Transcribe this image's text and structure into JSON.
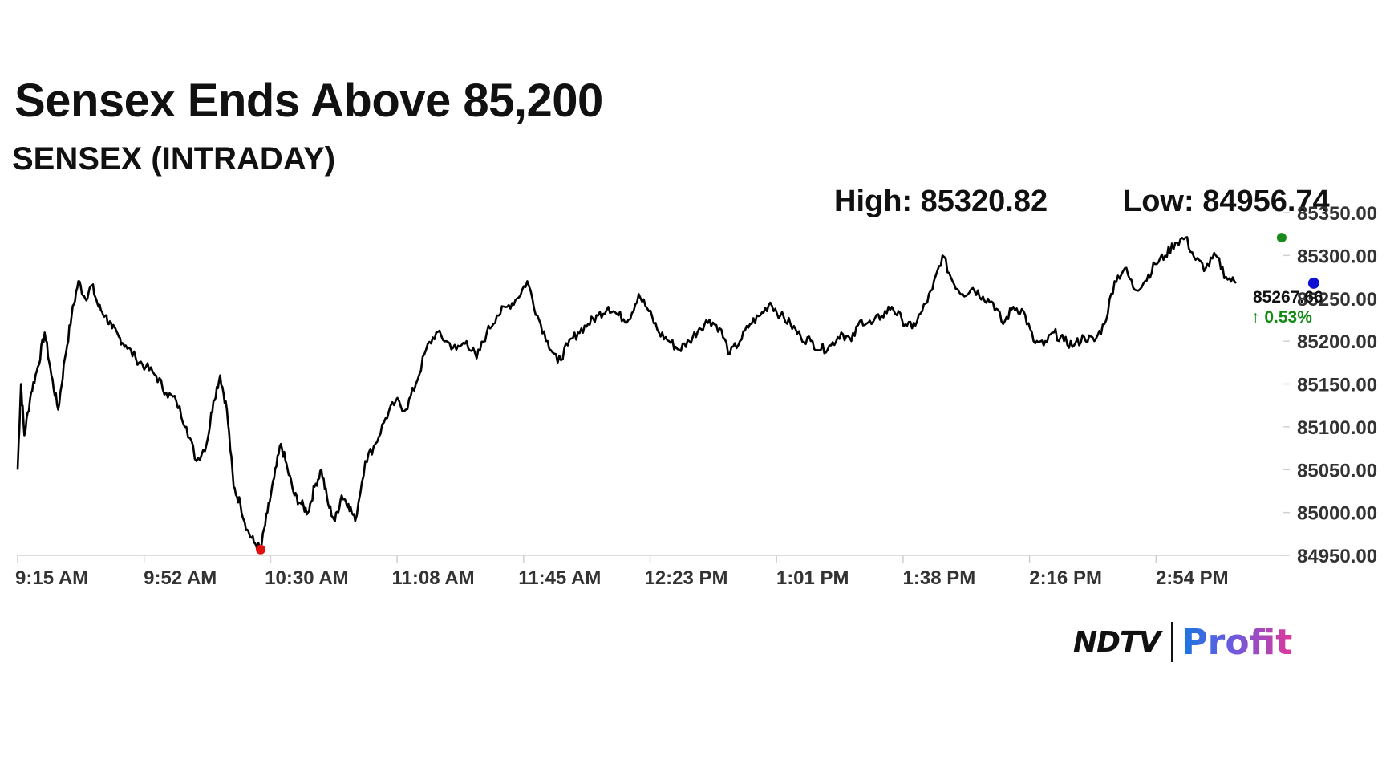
{
  "headline": "Sensex Ends Above 85,200",
  "subtitle": "SENSEX (INTRADAY)",
  "stats": {
    "high_label": "High: 85320.82",
    "low_label": "Low: 84956.74"
  },
  "last_value": {
    "price": "85267.66",
    "change": "↑ 0.53%",
    "change_color": "#138a13"
  },
  "brand": {
    "ndtv": "NDTV",
    "profit": "Profit"
  },
  "chart_data": {
    "type": "line",
    "title": "SENSEX (INTRADAY)",
    "x_tick_labels": [
      "9:15 AM",
      "9:52 AM",
      "10:30 AM",
      "11:08 AM",
      "11:45 AM",
      "12:23 PM",
      "1:01 PM",
      "1:38 PM",
      "2:16 PM",
      "2:54 PM"
    ],
    "y_tick_labels": [
      "85350.00",
      "85300.00",
      "85250.00",
      "85200.00",
      "85150.00",
      "85100.00",
      "85050.00",
      "85000.00",
      "84950.00"
    ],
    "ylim": [
      84950,
      85350
    ],
    "xlim_minutes": [
      555,
      930
    ],
    "y_axis_position": "right",
    "grid": false,
    "line_color": "#000000",
    "high_marker": {
      "time_min": 929.5,
      "value": 85320.82,
      "color": "#1a8a1a"
    },
    "low_marker": {
      "time_min": 627,
      "value": 84956.74,
      "color": "#e01010"
    },
    "close_marker": {
      "time_min": 939,
      "value": 85267.66,
      "color": "#1010d0"
    },
    "series": [
      {
        "values_time_min": [
          555,
          556,
          557,
          559,
          561,
          563,
          565,
          567,
          569,
          571,
          573,
          575,
          577,
          579,
          581,
          583,
          585,
          587,
          590,
          593,
          596,
          599,
          602,
          605,
          608,
          611,
          613,
          615,
          617,
          619,
          621,
          623,
          625,
          627,
          629,
          631,
          633,
          635,
          637,
          639,
          641,
          643,
          645,
          647,
          649,
          651,
          653,
          655,
          658,
          661,
          664,
          667,
          670,
          673,
          676,
          679,
          682,
          685,
          688,
          691,
          694,
          697,
          700,
          703,
          706,
          709,
          712,
          715,
          718,
          721,
          724,
          727,
          730,
          733,
          736,
          739,
          742,
          745,
          748,
          751,
          754,
          757,
          760,
          763,
          766,
          769,
          772,
          775,
          778,
          781,
          784,
          787,
          790,
          793,
          796,
          799,
          802,
          805,
          808,
          811,
          814,
          817,
          820,
          823,
          826,
          829,
          832,
          835,
          838,
          841,
          844,
          847,
          850,
          853,
          856,
          859,
          862,
          865,
          868,
          871,
          874,
          877,
          880,
          883,
          886,
          889,
          892,
          895,
          898,
          901,
          904,
          907,
          910,
          913,
          916,
          919,
          922,
          925,
          928,
          929.5,
          931,
          933,
          935,
          937,
          939
        ],
        "values": [
          85050,
          85150,
          85090,
          85140,
          85170,
          85210,
          85160,
          85120,
          85180,
          85230,
          85270,
          85250,
          85265,
          85240,
          85230,
          85215,
          85205,
          85195,
          85180,
          85170,
          85160,
          85140,
          85130,
          85100,
          85060,
          85080,
          85130,
          85160,
          85120,
          85030,
          85010,
          84980,
          84965,
          84956.74,
          85000,
          85040,
          85080,
          85050,
          85020,
          85010,
          85000,
          85030,
          85050,
          85010,
          84990,
          85020,
          85010,
          84990,
          85060,
          85080,
          85110,
          85130,
          85120,
          85150,
          85190,
          85210,
          85200,
          85190,
          85200,
          85180,
          85210,
          85230,
          85240,
          85250,
          85270,
          85230,
          85200,
          85175,
          85195,
          85210,
          85220,
          85230,
          85240,
          85230,
          85225,
          85255,
          85235,
          85210,
          85200,
          85190,
          85200,
          85215,
          85225,
          85215,
          85185,
          85200,
          85220,
          85230,
          85245,
          85230,
          85220,
          85205,
          85200,
          85190,
          85195,
          85210,
          85200,
          85225,
          85220,
          85230,
          85240,
          85225,
          85215,
          85235,
          85260,
          85300,
          85270,
          85255,
          85262,
          85252,
          85245,
          85220,
          85240,
          85235,
          85200,
          85195,
          85210,
          85200,
          85195,
          85205,
          85200,
          85220,
          85270,
          85285,
          85260,
          85270,
          85290,
          85300,
          85315,
          85320.82,
          85295,
          85285,
          85300,
          85275,
          85267.66
        ]
      }
    ]
  }
}
